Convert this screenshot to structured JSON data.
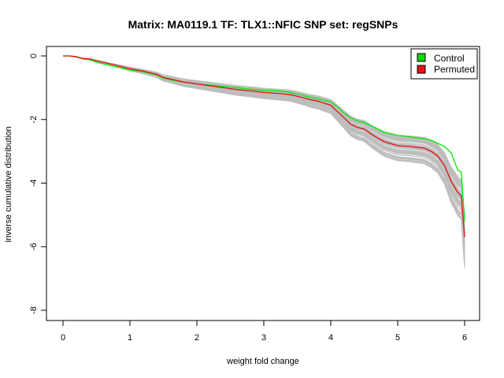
{
  "chart_data": {
    "type": "line",
    "title": "Matrix: MA0119.1 TF: TLX1::NFIC SNP set: regSNPs",
    "xlabel": "weight fold change",
    "ylabel": "inverse cumulative distribution",
    "xlim": [
      0,
      6
    ],
    "ylim": [
      -8,
      0
    ],
    "xticks": [
      "0",
      "1",
      "2",
      "3",
      "4",
      "5",
      "6"
    ],
    "yticks": [
      "0",
      "-2",
      "-4",
      "-6",
      "-8"
    ],
    "legend": {
      "position": "top-right",
      "entries": [
        {
          "label": "Control",
          "color": "#00dd00"
        },
        {
          "label": "Permuted",
          "color": "#ee1111"
        }
      ]
    },
    "colors": {
      "control": "#00ee00",
      "permuted": "#dd1111",
      "background_runs": "#bdbdbd"
    },
    "background_run_count": 60,
    "series": [
      {
        "name": "Control",
        "x": [
          0,
          0.1,
          0.2,
          0.3,
          0.4,
          0.5,
          0.6,
          0.8,
          1.0,
          1.2,
          1.4,
          1.5,
          1.6,
          1.8,
          2.0,
          2.2,
          2.4,
          2.6,
          2.8,
          3.0,
          3.2,
          3.3,
          3.4,
          3.5,
          3.6,
          3.7,
          3.8,
          4.0,
          4.1,
          4.2,
          4.3,
          4.4,
          4.5,
          4.6,
          4.7,
          4.8,
          5.0,
          5.2,
          5.4,
          5.5,
          5.6,
          5.7,
          5.8,
          5.9,
          5.95,
          6.0
        ],
        "y": [
          0,
          0,
          -0.02,
          -0.1,
          -0.12,
          -0.2,
          -0.25,
          -0.35,
          -0.45,
          -0.5,
          -0.6,
          -0.7,
          -0.75,
          -0.82,
          -0.88,
          -0.92,
          -0.96,
          -1.0,
          -1.05,
          -1.08,
          -1.1,
          -1.12,
          -1.15,
          -1.2,
          -1.25,
          -1.3,
          -1.35,
          -1.45,
          -1.6,
          -1.8,
          -1.95,
          -2.05,
          -2.1,
          -2.2,
          -2.3,
          -2.4,
          -2.5,
          -2.55,
          -2.6,
          -2.65,
          -2.75,
          -2.85,
          -3.05,
          -3.6,
          -3.65,
          -5.2
        ]
      },
      {
        "name": "Permuted",
        "x": [
          0,
          0.1,
          0.2,
          0.3,
          0.4,
          0.5,
          0.6,
          0.8,
          1.0,
          1.2,
          1.4,
          1.5,
          1.6,
          1.8,
          2.0,
          2.2,
          2.4,
          2.6,
          2.8,
          3.0,
          3.2,
          3.3,
          3.4,
          3.5,
          3.6,
          3.7,
          3.8,
          4.0,
          4.1,
          4.2,
          4.3,
          4.4,
          4.5,
          4.6,
          4.7,
          4.8,
          5.0,
          5.2,
          5.4,
          5.5,
          5.6,
          5.7,
          5.8,
          5.9,
          5.95,
          6.0
        ],
        "y": [
          0,
          0,
          -0.03,
          -0.08,
          -0.1,
          -0.15,
          -0.2,
          -0.3,
          -0.4,
          -0.48,
          -0.58,
          -0.68,
          -0.72,
          -0.82,
          -0.88,
          -0.94,
          -1.0,
          -1.06,
          -1.1,
          -1.15,
          -1.18,
          -1.2,
          -1.22,
          -1.27,
          -1.32,
          -1.38,
          -1.42,
          -1.55,
          -1.75,
          -1.95,
          -2.15,
          -2.25,
          -2.3,
          -2.45,
          -2.58,
          -2.7,
          -2.82,
          -2.85,
          -2.9,
          -3.0,
          -3.15,
          -3.45,
          -3.95,
          -4.3,
          -4.4,
          -5.7
        ]
      }
    ]
  }
}
